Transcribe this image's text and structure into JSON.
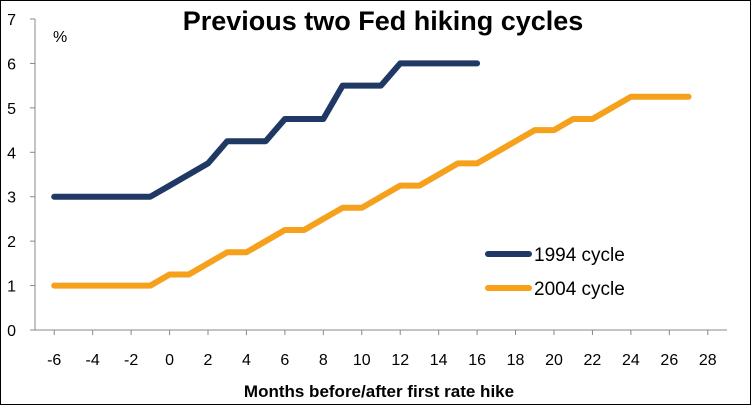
{
  "chart_data": {
    "type": "line",
    "title": "Previous two Fed hiking cycles",
    "xlabel": "Months before/after first rate hike",
    "ylabel": "",
    "y_unit": "%",
    "xlim": [
      -7,
      29
    ],
    "ylim": [
      0,
      7
    ],
    "x_ticks": [
      "-6",
      "-4",
      "-2",
      "0",
      "2",
      "4",
      "6",
      "8",
      "10",
      "12",
      "14",
      "16",
      "18",
      "20",
      "22",
      "24",
      "26",
      "28"
    ],
    "y_ticks": [
      "0",
      "1",
      "2",
      "3",
      "4",
      "5",
      "6",
      "7"
    ],
    "grid": false,
    "legend_position": "right",
    "series": [
      {
        "name": "1994 cycle",
        "color": "#1f3864",
        "x": [
          -6,
          -5,
          -4,
          -3,
          -2,
          -1,
          0,
          1,
          2,
          3,
          4,
          5,
          6,
          7,
          8,
          9,
          10,
          11,
          12,
          13,
          14,
          15,
          16
        ],
        "y": [
          3,
          3,
          3,
          3,
          3,
          3,
          3.25,
          3.5,
          3.75,
          4.25,
          4.25,
          4.25,
          4.75,
          4.75,
          4.75,
          5.5,
          5.5,
          5.5,
          6,
          6,
          6,
          6,
          6
        ]
      },
      {
        "name": "2004 cycle",
        "color": "#f5a11c",
        "x": [
          -6,
          -5,
          -4,
          -3,
          -2,
          -1,
          0,
          1,
          2,
          3,
          4,
          5,
          6,
          7,
          8,
          9,
          10,
          11,
          12,
          13,
          14,
          15,
          16,
          17,
          18,
          19,
          20,
          21,
          22,
          23,
          24,
          25,
          26,
          27
        ],
        "y": [
          1,
          1,
          1,
          1,
          1,
          1,
          1.25,
          1.25,
          1.5,
          1.75,
          1.75,
          2,
          2.25,
          2.25,
          2.5,
          2.75,
          2.75,
          3,
          3.25,
          3.25,
          3.5,
          3.75,
          3.75,
          4,
          4.25,
          4.5,
          4.5,
          4.75,
          4.75,
          5,
          5.25,
          5.25,
          5.25,
          5.25
        ]
      }
    ]
  }
}
